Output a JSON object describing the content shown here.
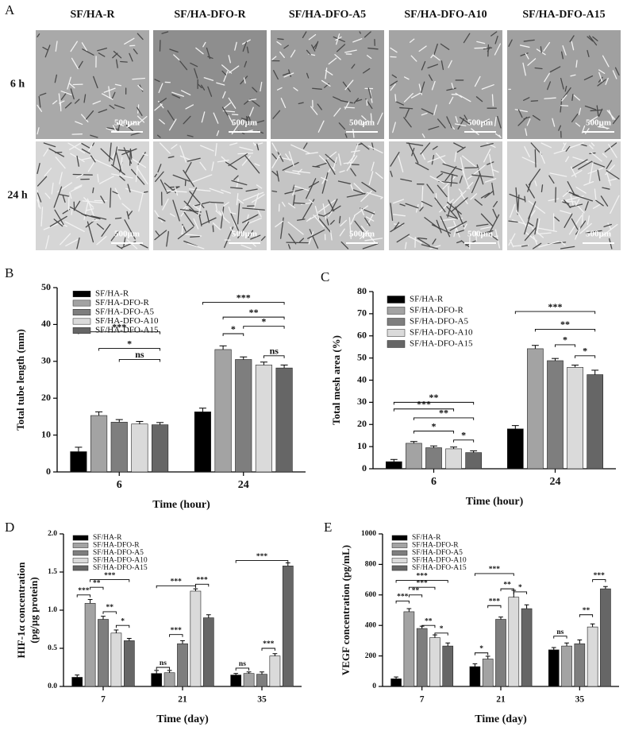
{
  "panel_a": {
    "label": "A",
    "columns": [
      "SF/HA-R",
      "SF/HA-DFO-R",
      "SF/HA-DFO-A5",
      "SF/HA-DFO-A10",
      "SF/HA-DFO-A15"
    ],
    "rows": [
      "6 h",
      "24 h"
    ],
    "scale_bar": "500µm"
  },
  "chart_data": [
    {
      "label": "B",
      "type": "bar",
      "ylabel": "Total tube length (mm)",
      "xlabel": "Time (hour)",
      "categories": [
        "6",
        "24"
      ],
      "ylim": [
        0,
        50
      ],
      "yticks": [
        0,
        10,
        20,
        30,
        40,
        50
      ],
      "legend": "upper left",
      "series": [
        {
          "name": "SF/HA-R",
          "color": "#000000",
          "values": [
            5.5,
            16.3
          ],
          "errors": [
            1.2,
            1.0
          ]
        },
        {
          "name": "SF/HA-DFO-R",
          "color": "#a3a3a3",
          "values": [
            15.3,
            33.2
          ],
          "errors": [
            1.0,
            1.0
          ]
        },
        {
          "name": "SF/HA-DFO-A5",
          "color": "#7e7e7e",
          "values": [
            13.5,
            30.5
          ],
          "errors": [
            0.7,
            0.7
          ]
        },
        {
          "name": "SF/HA-DFO-A10",
          "color": "#dadada",
          "values": [
            13.0,
            29.0
          ],
          "errors": [
            0.7,
            0.8
          ]
        },
        {
          "name": "SF/HA-DFO-A15",
          "color": "#666666",
          "values": [
            12.8,
            28.2
          ],
          "errors": [
            0.6,
            0.8
          ]
        }
      ],
      "annotations": [
        "***",
        "*",
        "ns",
        "***",
        "**",
        "*",
        "*",
        "ns"
      ]
    },
    {
      "label": "C",
      "type": "bar",
      "ylabel": "Total mesh area (%)",
      "xlabel": "Time (hour)",
      "categories": [
        "6",
        "24"
      ],
      "ylim": [
        0,
        80
      ],
      "yticks": [
        0,
        10,
        20,
        30,
        40,
        50,
        60,
        70,
        80
      ],
      "legend": "upper left",
      "series": [
        {
          "name": "SF/HA-R",
          "color": "#000000",
          "values": [
            3.2,
            18.0
          ],
          "errors": [
            1.0,
            1.5
          ]
        },
        {
          "name": "SF/HA-DFO-R",
          "color": "#a3a3a3",
          "values": [
            11.5,
            54.2
          ],
          "errors": [
            0.8,
            1.5
          ]
        },
        {
          "name": "SF/HA-DFO-A5",
          "color": "#7e7e7e",
          "values": [
            9.5,
            48.8
          ],
          "errors": [
            0.8,
            1.0
          ]
        },
        {
          "name": "SF/HA-DFO-A10",
          "color": "#dadada",
          "values": [
            9.0,
            45.8
          ],
          "errors": [
            0.8,
            1.0
          ]
        },
        {
          "name": "SF/HA-DFO-A15",
          "color": "#666666",
          "values": [
            7.3,
            42.5
          ],
          "errors": [
            0.8,
            2.0
          ]
        }
      ],
      "annotations": [
        "**",
        "***",
        "**",
        "*",
        "*",
        "***",
        "**",
        "*",
        "*"
      ]
    },
    {
      "label": "D",
      "type": "bar",
      "ylabel": [
        "HIF-1α concentration",
        "(pg/µg protein)"
      ],
      "xlabel": "Time (day)",
      "categories": [
        "7",
        "21",
        "35"
      ],
      "ylim": [
        0,
        2.0
      ],
      "yticks": [
        {
          "value": 0,
          "label": "0.0"
        },
        0.5,
        {
          "value": 1,
          "label": "1.0"
        },
        1.5,
        {
          "value": 2,
          "label": "2.0"
        }
      ],
      "legend": "upper left",
      "series": [
        {
          "name": "SF/HA-R",
          "color": "#000000",
          "values": [
            0.12,
            0.17,
            0.15
          ],
          "errors": [
            0.03,
            0.04,
            0.02
          ]
        },
        {
          "name": "SF/HA-DFO-R",
          "color": "#a3a3a3",
          "values": [
            1.09,
            0.18,
            0.17
          ],
          "errors": [
            0.05,
            0.03,
            0.02
          ]
        },
        {
          "name": "SF/HA-DFO-A5",
          "color": "#7e7e7e",
          "values": [
            0.88,
            0.56,
            0.16
          ],
          "errors": [
            0.04,
            0.04,
            0.03
          ]
        },
        {
          "name": "SF/HA-DFO-A10",
          "color": "#dadada",
          "values": [
            0.7,
            1.25,
            0.4
          ],
          "errors": [
            0.04,
            0.03,
            0.03
          ]
        },
        {
          "name": "SF/HA-DFO-A15",
          "color": "#666666",
          "values": [
            0.6,
            0.9,
            1.58
          ],
          "errors": [
            0.03,
            0.04,
            0.04
          ]
        }
      ],
      "annotations": [
        "***",
        "**",
        "***",
        "**",
        "*",
        "ns",
        "***",
        "***",
        "***",
        "ns",
        "***",
        "***"
      ]
    },
    {
      "label": "E",
      "type": "bar",
      "ylabel": "VEGF concentration (pg/mL)",
      "xlabel": "Time (day)",
      "categories": [
        "7",
        "21",
        "35"
      ],
      "ylim": [
        0,
        1000
      ],
      "yticks": [
        0,
        200,
        400,
        600,
        800,
        1000
      ],
      "legend": "upper left",
      "series": [
        {
          "name": "SF/HA-R",
          "color": "#000000",
          "values": [
            50,
            130,
            240
          ],
          "errors": [
            12,
            18,
            15
          ]
        },
        {
          "name": "SF/HA-DFO-R",
          "color": "#a3a3a3",
          "values": [
            490,
            180,
            265
          ],
          "errors": [
            20,
            18,
            20
          ]
        },
        {
          "name": "SF/HA-DFO-A5",
          "color": "#7e7e7e",
          "values": [
            380,
            440,
            280
          ],
          "errors": [
            15,
            15,
            25
          ]
        },
        {
          "name": "SF/HA-DFO-A10",
          "color": "#dadada",
          "values": [
            320,
            585,
            390
          ],
          "errors": [
            18,
            45,
            20
          ]
        },
        {
          "name": "SF/HA-DFO-A15",
          "color": "#666666",
          "values": [
            265,
            510,
            640
          ],
          "errors": [
            20,
            25,
            15
          ]
        }
      ],
      "annotations": [
        "***",
        "**",
        "***",
        "***",
        "**",
        "*",
        "*",
        "***",
        "***",
        "**",
        "*",
        "ns",
        "**",
        "***"
      ]
    }
  ]
}
